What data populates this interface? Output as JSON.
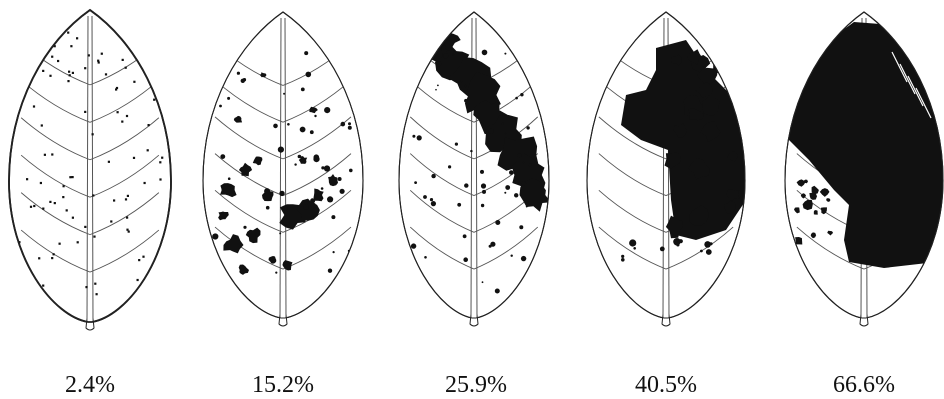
{
  "colors": {
    "outline": "#222222",
    "vein": "#555555",
    "lesion": "#111111",
    "background": "#ffffff"
  },
  "leaves": [
    {
      "label": "2.4%",
      "severity": 2.4
    },
    {
      "label": "15.2%",
      "severity": 15.2
    },
    {
      "label": "25.9%",
      "severity": 25.9
    },
    {
      "label": "40.5%",
      "severity": 40.5
    },
    {
      "label": "66.6%",
      "severity": 66.6
    }
  ]
}
